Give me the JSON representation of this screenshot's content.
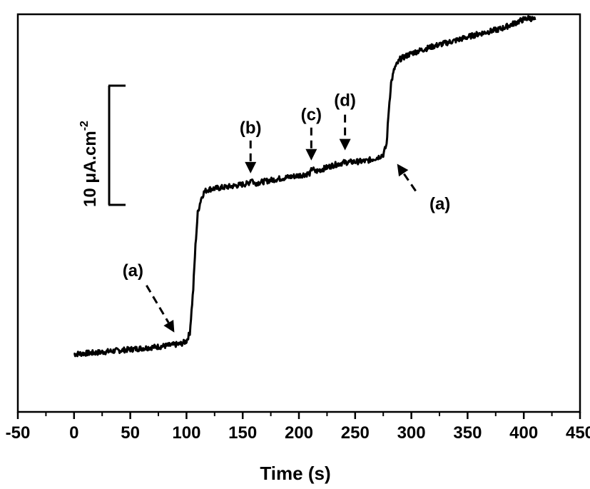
{
  "chart_data": {
    "type": "line",
    "title": "",
    "xlabel": "Time (s)",
    "ylabel": "",
    "xlim": [
      -50,
      450
    ],
    "ylim": [
      0,
      55
    ],
    "x_ticks": [
      -50,
      0,
      50,
      100,
      150,
      200,
      250,
      300,
      350,
      400,
      450
    ],
    "x_tick_labels": [
      "-50",
      "0",
      "50",
      "100",
      "150",
      "200",
      "250",
      "300",
      "350",
      "400",
      "450"
    ],
    "y_ticks_shown": false,
    "grid": false,
    "series": [
      {
        "points": [
          [
            0,
            8.0
          ],
          [
            20,
            8.2
          ],
          [
            40,
            8.5
          ],
          [
            60,
            8.8
          ],
          [
            80,
            9.1
          ],
          [
            95,
            9.4
          ],
          [
            100,
            9.8
          ],
          [
            103,
            11
          ],
          [
            106,
            17
          ],
          [
            108,
            23
          ],
          [
            110,
            27.5
          ],
          [
            113,
            29.5
          ],
          [
            116,
            30.5
          ],
          [
            120,
            30.8
          ],
          [
            140,
            31.2
          ],
          [
            155,
            31.6
          ],
          [
            158,
            32.3
          ],
          [
            160,
            31.6
          ],
          [
            180,
            32.2
          ],
          [
            200,
            32.7
          ],
          [
            210,
            33.0
          ],
          [
            212,
            33.8
          ],
          [
            214,
            33.2
          ],
          [
            230,
            34.1
          ],
          [
            240,
            34.5
          ],
          [
            260,
            34.7
          ],
          [
            270,
            35.2
          ],
          [
            275,
            35.6
          ],
          [
            278,
            37
          ],
          [
            280,
            42
          ],
          [
            282,
            45.5
          ],
          [
            285,
            47.5
          ],
          [
            290,
            48.8
          ],
          [
            300,
            49.6
          ],
          [
            320,
            50.6
          ],
          [
            340,
            51.4
          ],
          [
            360,
            52.3
          ],
          [
            380,
            53.0
          ],
          [
            400,
            54.3
          ],
          [
            405,
            54.5
          ],
          [
            410,
            54.2
          ]
        ]
      }
    ],
    "annotations": [
      {
        "label": "(a)",
        "x": 93,
        "y": 9.4
      },
      {
        "label": "(b)",
        "x": 157,
        "y": 32.0
      },
      {
        "label": "(c)",
        "x": 211,
        "y": 33.6
      },
      {
        "label": "(d)",
        "x": 241,
        "y": 34.6
      },
      {
        "label": "(a)",
        "x": 281,
        "y": 35.5
      }
    ],
    "scale_bar": {
      "label": "10 μA.cm",
      "superscript": "-2",
      "value": 10
    }
  }
}
